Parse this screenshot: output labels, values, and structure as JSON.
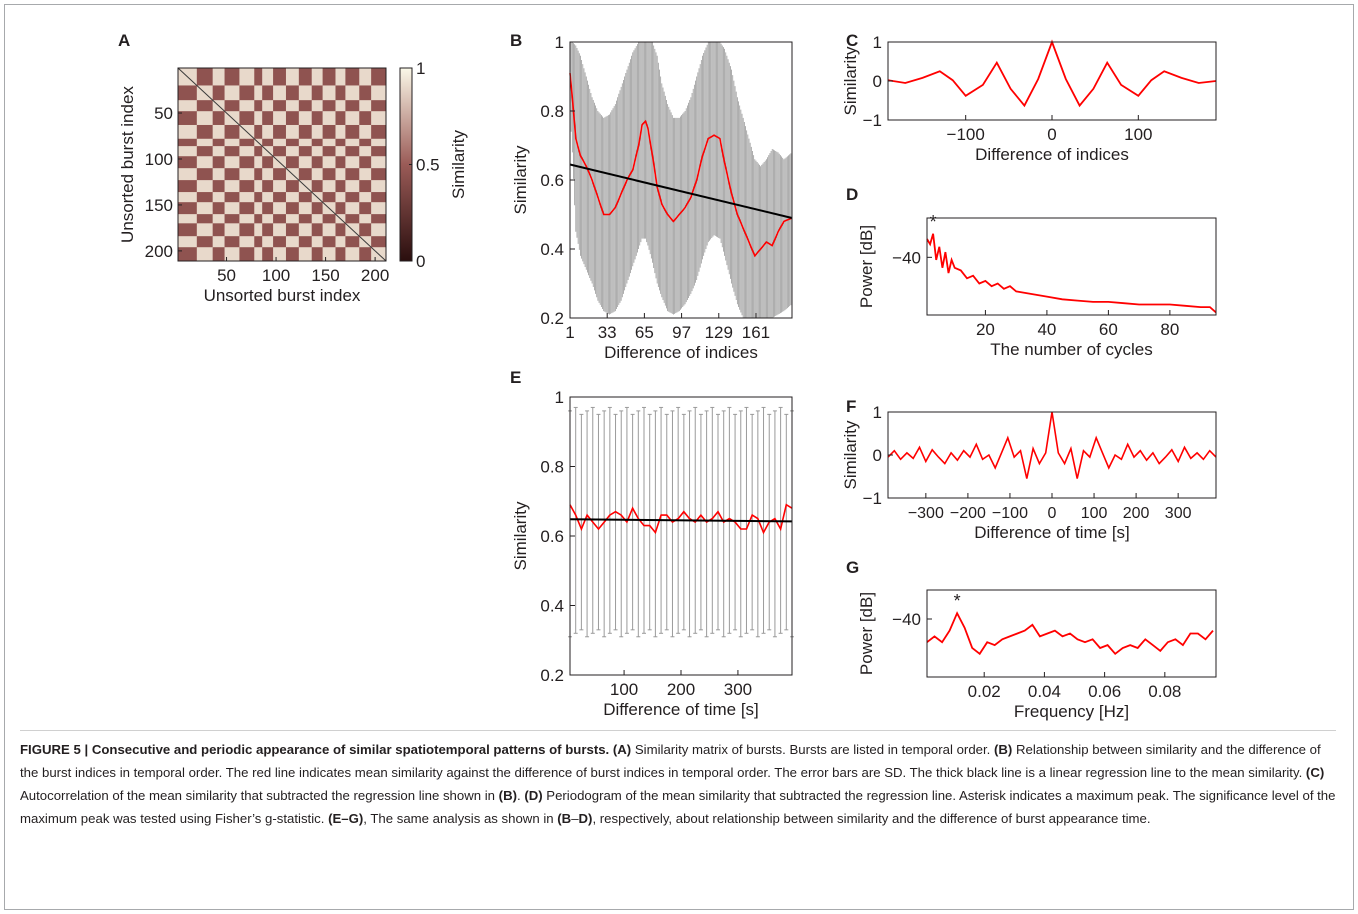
{
  "figure": {
    "caption_title": "FIGURE 5 | Consecutive and periodic appearance of similar spatiotemporal patterns of bursts.",
    "caption_parts": [
      {
        "text": "(A)",
        "bold": true
      },
      {
        "text": " Similarity matrix of bursts. Bursts are listed in temporal order. ",
        "bold": false
      },
      {
        "text": "(B)",
        "bold": true
      },
      {
        "text": " Relationship between similarity and the difference of the burst indices in temporal order. The red line indicates mean similarity against the difference of burst indices in temporal order. The error bars are SD. The thick black line is a linear regression line to the mean similarity. ",
        "bold": false
      },
      {
        "text": "(C)",
        "bold": true
      },
      {
        "text": " Autocorrelation of the mean similarity that subtracted the regression line shown in ",
        "bold": false
      },
      {
        "text": "(B)",
        "bold": true
      },
      {
        "text": ". ",
        "bold": false
      },
      {
        "text": "(D)",
        "bold": true
      },
      {
        "text": " Periodogram of the mean similarity that subtracted the regression line. Asterisk indicates a maximum peak. The significance level of the maximum peak was tested using Fisher’s g-statistic. ",
        "bold": false
      },
      {
        "text": "(E–G)",
        "bold": true
      },
      {
        "text": ", The same analysis as shown in ",
        "bold": false
      },
      {
        "text": "(B",
        "bold": true
      },
      {
        "text": "–",
        "bold": false
      },
      {
        "text": "D)",
        "bold": true
      },
      {
        "text": ", respectively, about relationship between similarity and the difference of burst appearance time.",
        "bold": false
      }
    ],
    "colors": {
      "mean_line": "#ff0000",
      "regression": "#000000",
      "error_bar": "#9a9a9a",
      "text": "#231f20"
    }
  },
  "chart_data": [
    {
      "panel": "A",
      "type": "heatmap",
      "xlabel": "Unsorted burst index",
      "ylabel": "Unsorted burst index",
      "x_ticks": [
        50,
        100,
        150,
        200
      ],
      "y_ticks": [
        50,
        100,
        150,
        200
      ],
      "xlim": [
        1,
        211
      ],
      "ylim": [
        1,
        211
      ],
      "colorbar": {
        "label": "Similarity",
        "range": [
          0,
          1
        ],
        "ticks": [
          0,
          0.5,
          1
        ],
        "tick_labels": [
          "0",
          "0.5",
          "1"
        ],
        "low_color": "#2a0e0e",
        "mid_color": "#9a5b57",
        "high_color": "#fbf8e8"
      },
      "block_boundaries": [
        1,
        20,
        36,
        48,
        63,
        78,
        86,
        97,
        110,
        123,
        136,
        147,
        160,
        170,
        184,
        196,
        211
      ],
      "block_phase": [
        1,
        0,
        1,
        0,
        1,
        0,
        1,
        0,
        1,
        0,
        1,
        0,
        1,
        0,
        1,
        0
      ],
      "block_similarity_high": 0.9,
      "block_similarity_low": 0.45
    },
    {
      "panel": "B",
      "type": "line",
      "xlabel": "Difference of indices",
      "ylabel": "Similarity",
      "xlim": [
        1,
        192
      ],
      "ylim": [
        0.2,
        1
      ],
      "x_ticks": [
        1,
        33,
        65,
        97,
        129,
        161
      ],
      "y_ticks": [
        0.2,
        0.4,
        0.6,
        0.8,
        1
      ],
      "mean_x": [
        1,
        3,
        6,
        10,
        15,
        20,
        25,
        30,
        35,
        40,
        45,
        50,
        55,
        60,
        63,
        66,
        68,
        72,
        76,
        80,
        85,
        90,
        95,
        100,
        105,
        110,
        115,
        120,
        125,
        130,
        134,
        140,
        145,
        150,
        155,
        160,
        165,
        170,
        175,
        180,
        185,
        192
      ],
      "mean_y": [
        0.91,
        0.84,
        0.72,
        0.67,
        0.64,
        0.6,
        0.55,
        0.5,
        0.5,
        0.52,
        0.56,
        0.6,
        0.63,
        0.7,
        0.76,
        0.77,
        0.75,
        0.67,
        0.58,
        0.53,
        0.5,
        0.48,
        0.5,
        0.52,
        0.55,
        0.6,
        0.67,
        0.72,
        0.73,
        0.72,
        0.65,
        0.56,
        0.5,
        0.46,
        0.42,
        0.38,
        0.4,
        0.42,
        0.41,
        0.45,
        0.48,
        0.49
      ],
      "sd_upper_y": [
        1.0,
        1.0,
        0.99,
        0.96,
        0.9,
        0.84,
        0.8,
        0.78,
        0.79,
        0.82,
        0.87,
        0.92,
        0.97,
        1.0,
        1.0,
        1.0,
        1.0,
        1.0,
        0.96,
        0.88,
        0.82,
        0.78,
        0.78,
        0.8,
        0.84,
        0.9,
        0.96,
        1.0,
        1.0,
        1.0,
        0.98,
        0.92,
        0.84,
        0.78,
        0.72,
        0.66,
        0.64,
        0.66,
        0.69,
        0.68,
        0.66,
        0.68
      ],
      "sd_lower_y": [
        0.8,
        0.68,
        0.45,
        0.38,
        0.34,
        0.3,
        0.25,
        0.22,
        0.21,
        0.22,
        0.25,
        0.3,
        0.35,
        0.4,
        0.43,
        0.43,
        0.41,
        0.36,
        0.3,
        0.26,
        0.22,
        0.21,
        0.22,
        0.24,
        0.27,
        0.31,
        0.37,
        0.42,
        0.44,
        0.43,
        0.38,
        0.3,
        0.24,
        0.2,
        0.2,
        0.2,
        0.2,
        0.2,
        0.2,
        0.21,
        0.22,
        0.24
      ],
      "regression": {
        "x": [
          1,
          192
        ],
        "y": [
          0.645,
          0.49
        ]
      }
    },
    {
      "panel": "C",
      "type": "line",
      "xlabel": "Difference of indices",
      "ylabel": "Similarity",
      "xlim": [
        -190,
        190
      ],
      "ylim": [
        -1,
        1
      ],
      "x_ticks": [
        -100,
        0,
        100
      ],
      "y_ticks": [
        -1,
        0,
        1
      ],
      "x": [
        -190,
        -170,
        -150,
        -130,
        -115,
        -100,
        -80,
        -64,
        -48,
        -32,
        -16,
        0,
        16,
        32,
        48,
        64,
        80,
        100,
        115,
        130,
        150,
        170,
        190
      ],
      "y": [
        0.02,
        -0.05,
        0.08,
        0.25,
        0.02,
        -0.38,
        -0.1,
        0.47,
        -0.2,
        -0.63,
        0.05,
        1.0,
        0.05,
        -0.63,
        -0.2,
        0.47,
        -0.1,
        -0.38,
        0.02,
        0.25,
        0.08,
        -0.05,
        0.0
      ]
    },
    {
      "panel": "D",
      "type": "line",
      "xlabel": "The number of cycles",
      "ylabel": "Power [dB]",
      "xlim": [
        1,
        95
      ],
      "ylim": [
        -62,
        -25
      ],
      "x_ticks": [
        20,
        40,
        60,
        80
      ],
      "y_ticks": [
        -40
      ],
      "tick_labels_y": [
        "−40"
      ],
      "x": [
        1,
        2,
        3,
        4,
        5,
        6,
        7,
        8,
        9,
        10,
        12,
        14,
        16,
        18,
        20,
        22,
        24,
        26,
        28,
        30,
        35,
        40,
        45,
        50,
        55,
        60,
        65,
        70,
        75,
        80,
        85,
        90,
        93,
        95
      ],
      "y": [
        -33,
        -35,
        -31,
        -41,
        -36,
        -44,
        -38,
        -46,
        -41,
        -44,
        -45,
        -48,
        -47,
        -50,
        -49,
        -51,
        -50,
        -52,
        -51,
        -53,
        -54,
        -55,
        -56,
        -56.5,
        -57,
        -57,
        -57.5,
        -58,
        -58,
        -58,
        -58.5,
        -59,
        -59,
        -61
      ],
      "peak": {
        "x": 3,
        "label": "*"
      }
    },
    {
      "panel": "E",
      "type": "line",
      "xlabel": "Difference of time [s]",
      "ylabel": "Similarity",
      "xlim": [
        5,
        395
      ],
      "ylim": [
        0.2,
        1
      ],
      "x_ticks": [
        100,
        200,
        300
      ],
      "y_ticks": [
        0.2,
        0.4,
        0.6,
        0.8,
        1
      ],
      "x": [
        5,
        15,
        25,
        35,
        45,
        55,
        65,
        75,
        85,
        95,
        105,
        115,
        125,
        135,
        145,
        155,
        165,
        175,
        185,
        195,
        205,
        215,
        225,
        235,
        245,
        255,
        265,
        275,
        285,
        295,
        305,
        315,
        325,
        335,
        345,
        355,
        365,
        375,
        385,
        395
      ],
      "y": [
        0.69,
        0.66,
        0.62,
        0.66,
        0.64,
        0.62,
        0.64,
        0.66,
        0.67,
        0.66,
        0.64,
        0.68,
        0.65,
        0.63,
        0.63,
        0.61,
        0.66,
        0.66,
        0.64,
        0.65,
        0.67,
        0.65,
        0.64,
        0.66,
        0.64,
        0.65,
        0.67,
        0.64,
        0.65,
        0.64,
        0.62,
        0.62,
        0.66,
        0.65,
        0.61,
        0.64,
        0.65,
        0.62,
        0.69,
        0.68
      ],
      "sd_upper": 0.96,
      "sd_lower": 0.31,
      "regression": {
        "x": [
          5,
          395
        ],
        "y": [
          0.648,
          0.642
        ]
      }
    },
    {
      "panel": "F",
      "type": "line",
      "xlabel": "Difference of time [s]",
      "ylabel": "Similarity",
      "xlim": [
        -390,
        390
      ],
      "ylim": [
        -1,
        1
      ],
      "x_ticks": [
        -300,
        -200,
        -100,
        0,
        100,
        200,
        300
      ],
      "x_tick_labels": [
        "−300",
        "−200",
        "−100",
        "0",
        "100",
        "200",
        "300"
      ],
      "y_ticks": [
        -1,
        0,
        1
      ],
      "x": [
        -390,
        -375,
        -360,
        -345,
        -330,
        -315,
        -300,
        -285,
        -270,
        -255,
        -240,
        -225,
        -210,
        -195,
        -180,
        -165,
        -150,
        -135,
        -120,
        -105,
        -90,
        -75,
        -60,
        -45,
        -30,
        -15,
        0,
        15,
        30,
        45,
        60,
        75,
        90,
        105,
        120,
        135,
        150,
        165,
        180,
        195,
        210,
        225,
        240,
        255,
        270,
        285,
        300,
        315,
        330,
        345,
        360,
        375,
        390
      ],
      "y": [
        -0.05,
        0.1,
        -0.1,
        0.05,
        -0.08,
        0.18,
        -0.15,
        0.12,
        -0.05,
        -0.2,
        0.05,
        -0.12,
        0.1,
        -0.05,
        0.25,
        -0.1,
        0.0,
        -0.3,
        0.05,
        0.4,
        -0.05,
        0.1,
        -0.55,
        0.15,
        -0.2,
        0.05,
        1.0,
        0.05,
        -0.2,
        0.15,
        -0.55,
        0.1,
        -0.05,
        0.4,
        0.05,
        -0.3,
        0.0,
        -0.1,
        0.25,
        -0.05,
        0.1,
        -0.12,
        0.05,
        -0.2,
        -0.05,
        0.12,
        -0.15,
        0.18,
        -0.08,
        0.05,
        -0.1,
        0.1,
        -0.05
      ]
    },
    {
      "panel": "G",
      "type": "line",
      "xlabel": "Frequency [Hz]",
      "ylabel": "Power [dB]",
      "xlim": [
        0.001,
        0.097
      ],
      "ylim": [
        -60,
        -30
      ],
      "x_ticks": [
        0.02,
        0.04,
        0.06,
        0.08
      ],
      "y_ticks": [
        -40
      ],
      "tick_labels_y": [
        "−40"
      ],
      "x": [
        0.001,
        0.0035,
        0.006,
        0.0085,
        0.011,
        0.0135,
        0.016,
        0.0185,
        0.021,
        0.0235,
        0.026,
        0.0285,
        0.031,
        0.0335,
        0.036,
        0.0385,
        0.041,
        0.0435,
        0.046,
        0.0485,
        0.051,
        0.0535,
        0.056,
        0.0585,
        0.061,
        0.0635,
        0.066,
        0.0685,
        0.071,
        0.0735,
        0.076,
        0.0785,
        0.081,
        0.0835,
        0.086,
        0.0885,
        0.091,
        0.0935,
        0.096
      ],
      "y": [
        -48,
        -46,
        -48,
        -44,
        -38,
        -43,
        -50,
        -52,
        -48,
        -49,
        -47,
        -46,
        -45,
        -44,
        -42,
        -46,
        -45,
        -44,
        -46,
        -45,
        -47,
        -48,
        -47,
        -50,
        -49,
        -52,
        -50,
        -49,
        -50,
        -47,
        -49,
        -51,
        -48,
        -47,
        -49,
        -45,
        -45,
        -47,
        -44
      ],
      "peak": {
        "x": 0.011,
        "label": "*"
      }
    }
  ]
}
